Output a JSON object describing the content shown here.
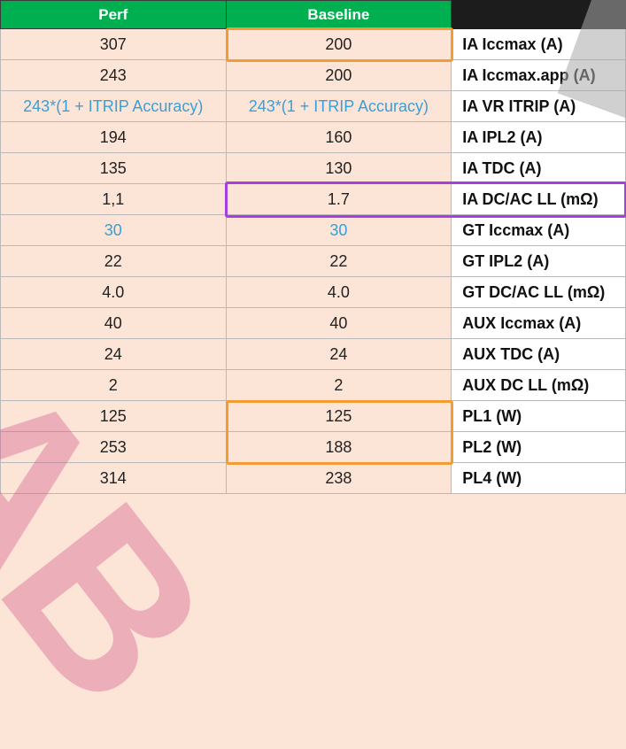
{
  "headers": {
    "perf": "Perf",
    "baseline": "Baseline",
    "param": ""
  },
  "rows": [
    {
      "perf": "307",
      "baseline": "200",
      "param": "IA Iccmax (A)"
    },
    {
      "perf": "243",
      "baseline": "200",
      "param": "IA Iccmax.app (A)"
    },
    {
      "perf": "243*(1 + ITRIP Accuracy)",
      "baseline": "243*(1 + ITRIP Accuracy)",
      "param": "IA VR ITRIP (A)"
    },
    {
      "perf": "194",
      "baseline": "160",
      "param": "IA IPL2 (A)"
    },
    {
      "perf": "135",
      "baseline": "130",
      "param": "IA TDC (A)"
    },
    {
      "perf": "1,1",
      "baseline": "1.7",
      "param": "IA  DC/AC LL (mΩ)"
    },
    {
      "perf": "30",
      "baseline": "30",
      "param": "GT Iccmax (A)"
    },
    {
      "perf": "22",
      "baseline": "22",
      "param": "GT IPL2 (A)"
    },
    {
      "perf": "4.0",
      "baseline": "4.0",
      "param": "GT DC/AC LL (mΩ)"
    },
    {
      "perf": "40",
      "baseline": "40",
      "param": "AUX Iccmax (A)"
    },
    {
      "perf": "24",
      "baseline": "24",
      "param": "AUX TDC (A)"
    },
    {
      "perf": "2",
      "baseline": "2",
      "param": "AUX DC LL (mΩ)"
    },
    {
      "perf": "125",
      "baseline": "125",
      "param": "PL1 (W)"
    },
    {
      "perf": "253",
      "baseline": "188",
      "param": "PL2 (W)"
    },
    {
      "perf": "314",
      "baseline": "238",
      "param": "PL4 (W)"
    }
  ],
  "colors": {
    "header": "#00b050",
    "cell": "#fce4d6",
    "blue_text": "#3a9fd8",
    "highlight_orange": "#f39c34",
    "highlight_purple": "#a73fdf"
  },
  "watermark": "LAB"
}
